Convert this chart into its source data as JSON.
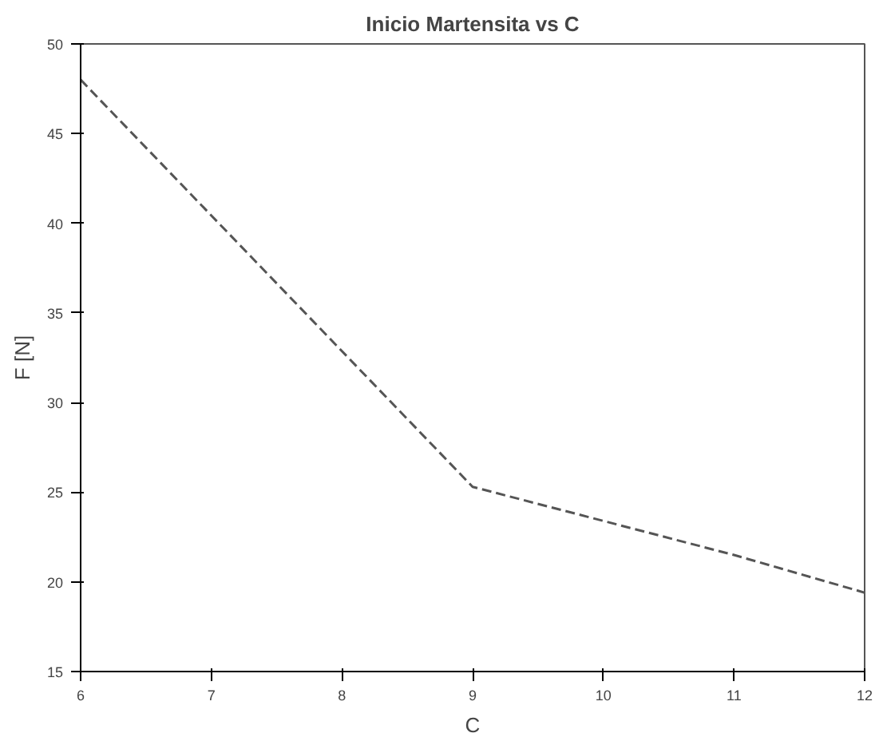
{
  "chart_data": {
    "type": "line",
    "title": "Inicio Martensita vs C",
    "xlabel": "C",
    "ylabel": "F [N]",
    "x": [
      6,
      9,
      10,
      11,
      12
    ],
    "series": [
      {
        "color": "#555555",
        "values": [
          48,
          25.3,
          23.4,
          21.5,
          19.4
        ]
      }
    ],
    "xlim": [
      6,
      12
    ],
    "xticks": [
      6,
      7,
      8,
      9,
      10,
      11,
      12
    ],
    "ylim": [
      15,
      50
    ],
    "yticks": [
      15,
      20,
      25,
      30,
      35,
      40,
      45,
      50
    ],
    "grid": false,
    "line_style": "dashed",
    "marker": "none"
  }
}
